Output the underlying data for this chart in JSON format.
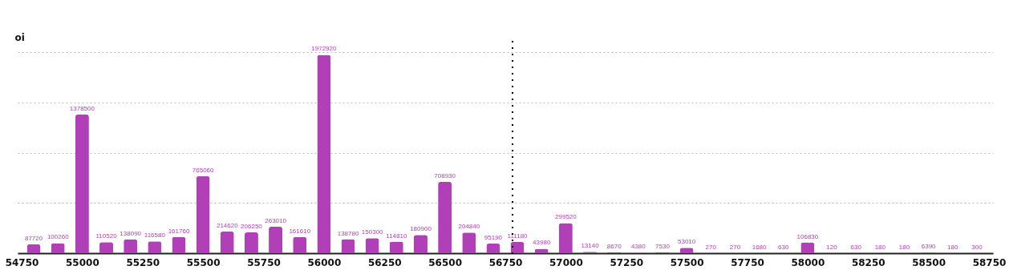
{
  "chart_data": {
    "type": "bar",
    "ylabel": "oi",
    "x": [
      54800,
      54900,
      55000,
      55100,
      55200,
      55300,
      55400,
      55500,
      55600,
      55700,
      55800,
      55900,
      56000,
      56100,
      56200,
      56300,
      56400,
      56500,
      56600,
      56700,
      56800,
      56900,
      57000,
      57100,
      57200,
      57300,
      57400,
      57500,
      57600,
      57700,
      57800,
      57900,
      58000,
      58100,
      58200,
      58300,
      58400,
      58500,
      58600,
      58700
    ],
    "values": [
      87720,
      100260,
      1378500,
      110520,
      138090,
      116580,
      161760,
      765060,
      214620,
      206250,
      263010,
      161610,
      1972920,
      138780,
      150300,
      114810,
      180900,
      708930,
      204840,
      95190,
      111180,
      43980,
      299520,
      13140,
      8670,
      4380,
      7530,
      53010,
      270,
      270,
      1680,
      630,
      106830,
      120,
      630,
      180,
      180,
      6390,
      180,
      300
    ],
    "color": "#b03fb8",
    "data_labels": true,
    "xlim": [
      54750,
      58750
    ],
    "xticks": [
      54750,
      55000,
      55250,
      55500,
      55750,
      56000,
      56250,
      56500,
      56750,
      57000,
      57250,
      57500,
      57750,
      58000,
      58250,
      58500,
      58750
    ],
    "ylim": [
      0,
      2000000
    ],
    "yticks": [
      {
        "value": 0,
        "label": null
      },
      {
        "value": 500000,
        "label": null
      },
      {
        "value": 1000000,
        "label": null
      },
      {
        "value": 1500000,
        "label": null
      },
      {
        "value": 2000000,
        "label": null
      }
    ],
    "grid": "y",
    "tick_labels": "x",
    "ref_lines": [
      {
        "axis": "x",
        "value": 56780,
        "color": "#000000",
        "line_style": "dotted"
      }
    ]
  }
}
